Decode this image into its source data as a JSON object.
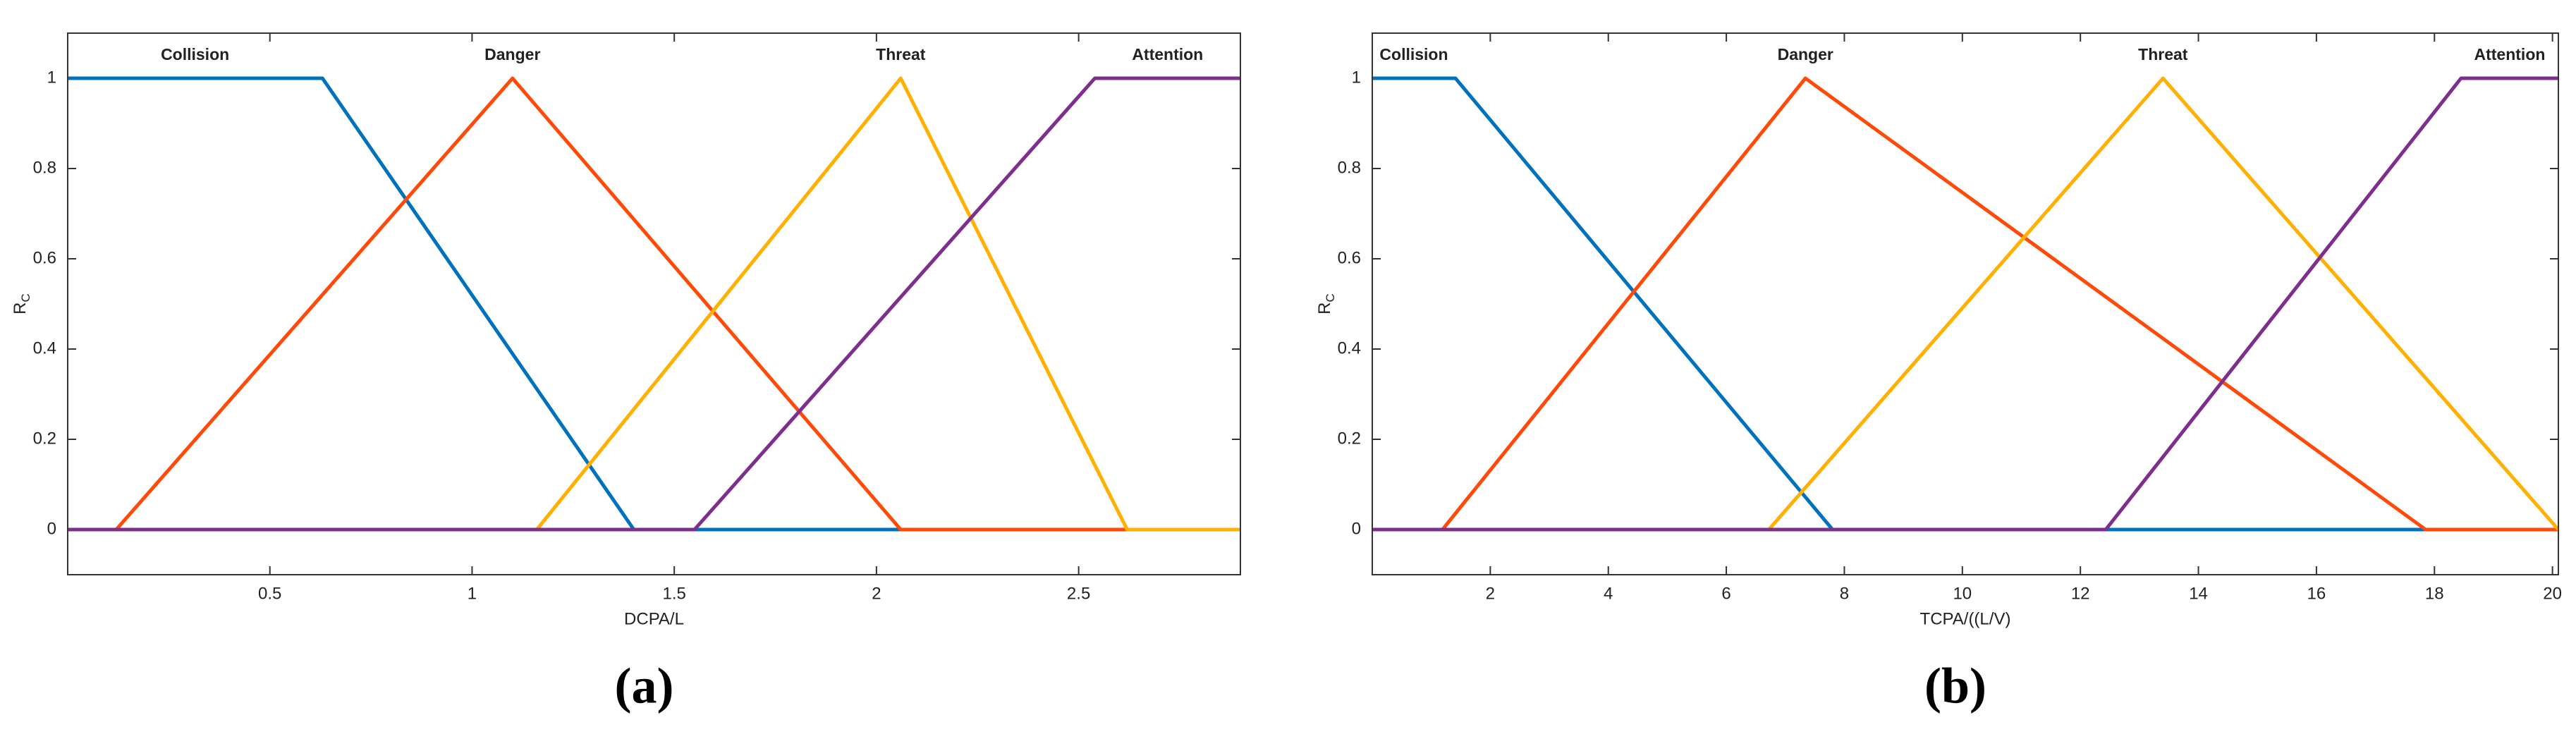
{
  "chart_data": [
    {
      "type": "line",
      "xlabel": "DCPA/L",
      "ylabel": "R",
      "ylabel_sub": "C",
      "caption": "(a)",
      "xlim": [
        0,
        2.9
      ],
      "ylim": [
        -0.1,
        1.1
      ],
      "xticks": [
        0.5,
        1,
        1.5,
        2,
        2.5
      ],
      "yticks": [
        0,
        0.2,
        0.4,
        0.6,
        0.8,
        1
      ],
      "series": [
        {
          "name": "Collision",
          "color": "#0072BD",
          "x": [
            0,
            0.63,
            1.4,
            2.9
          ],
          "values": [
            1,
            1,
            0,
            0
          ]
        },
        {
          "name": "Danger",
          "color": "#FF4A0A",
          "x": [
            0,
            0.12,
            1.1,
            2.06,
            2.9
          ],
          "values": [
            0,
            0,
            1,
            0,
            0
          ]
        },
        {
          "name": "Threat",
          "color": "#FFB000",
          "x": [
            0,
            1.16,
            2.06,
            2.62,
            2.9
          ],
          "values": [
            0,
            0,
            1,
            0,
            0
          ]
        },
        {
          "name": "Attention",
          "color": "#7E2F8E",
          "x": [
            0,
            1.55,
            2.54,
            2.9
          ],
          "values": [
            0,
            0,
            1,
            1
          ]
        }
      ]
    },
    {
      "type": "line",
      "xlabel": "TCPA/((L/V)",
      "ylabel": "R",
      "ylabel_sub": "C",
      "caption": "(b)",
      "xlim": [
        0,
        20.1
      ],
      "ylim": [
        -0.1,
        1.1
      ],
      "xticks": [
        2,
        4,
        6,
        8,
        10,
        12,
        14,
        16,
        18,
        20
      ],
      "yticks": [
        0,
        0.2,
        0.4,
        0.6,
        0.8,
        1
      ],
      "series": [
        {
          "name": "Collision",
          "color": "#0072BD",
          "x": [
            0,
            1.41,
            7.8,
            20.1
          ],
          "values": [
            1,
            1,
            0,
            0
          ]
        },
        {
          "name": "Danger",
          "color": "#FF4A0A",
          "x": [
            0,
            1.19,
            7.34,
            17.85,
            20.1
          ],
          "values": [
            0,
            0,
            1,
            0,
            0
          ]
        },
        {
          "name": "Threat",
          "color": "#FFB000",
          "x": [
            0,
            6.72,
            13.4,
            20.1
          ],
          "values": [
            0,
            0,
            1,
            0
          ]
        },
        {
          "name": "Attention",
          "color": "#7E2F8E",
          "x": [
            0,
            12.43,
            18.45,
            20.1
          ],
          "values": [
            0,
            0,
            1,
            1
          ]
        }
      ]
    }
  ]
}
